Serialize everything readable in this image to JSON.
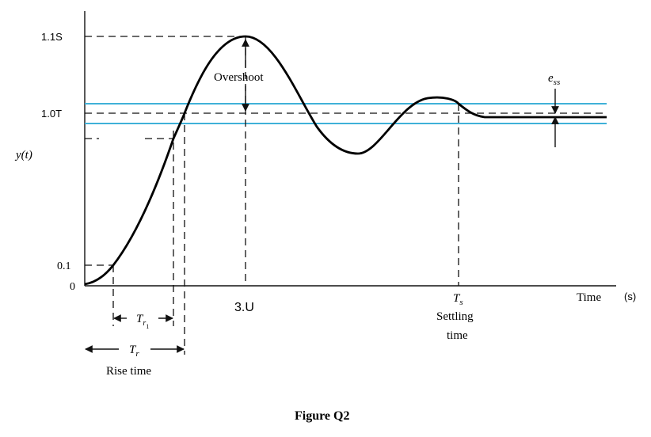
{
  "figure": {
    "caption": "Figure Q2"
  },
  "yaxis": {
    "label": "y(t)",
    "ticks": {
      "overshoot_level": "1.1S",
      "final_value": "1.0T",
      "ten_percent": "0.1",
      "zero": "0"
    }
  },
  "xaxis": {
    "label": "Time",
    "unit": "(s)",
    "peak_time": "3.U"
  },
  "annotations": {
    "overshoot": "Overshoot",
    "ess_base": "e",
    "ess_sub": "ss",
    "tr1_base": "T",
    "tr1_sub": "r",
    "tr1_subsub": "1",
    "tr_base": "T",
    "tr_sub": "r",
    "rise_time": "Rise time",
    "ts_base": "T",
    "ts_sub": "s",
    "settling_line1": "Settling",
    "settling_line2": "time"
  },
  "colors": {
    "curve": "#000000",
    "tolerance_band": "#3fb1d8"
  }
}
